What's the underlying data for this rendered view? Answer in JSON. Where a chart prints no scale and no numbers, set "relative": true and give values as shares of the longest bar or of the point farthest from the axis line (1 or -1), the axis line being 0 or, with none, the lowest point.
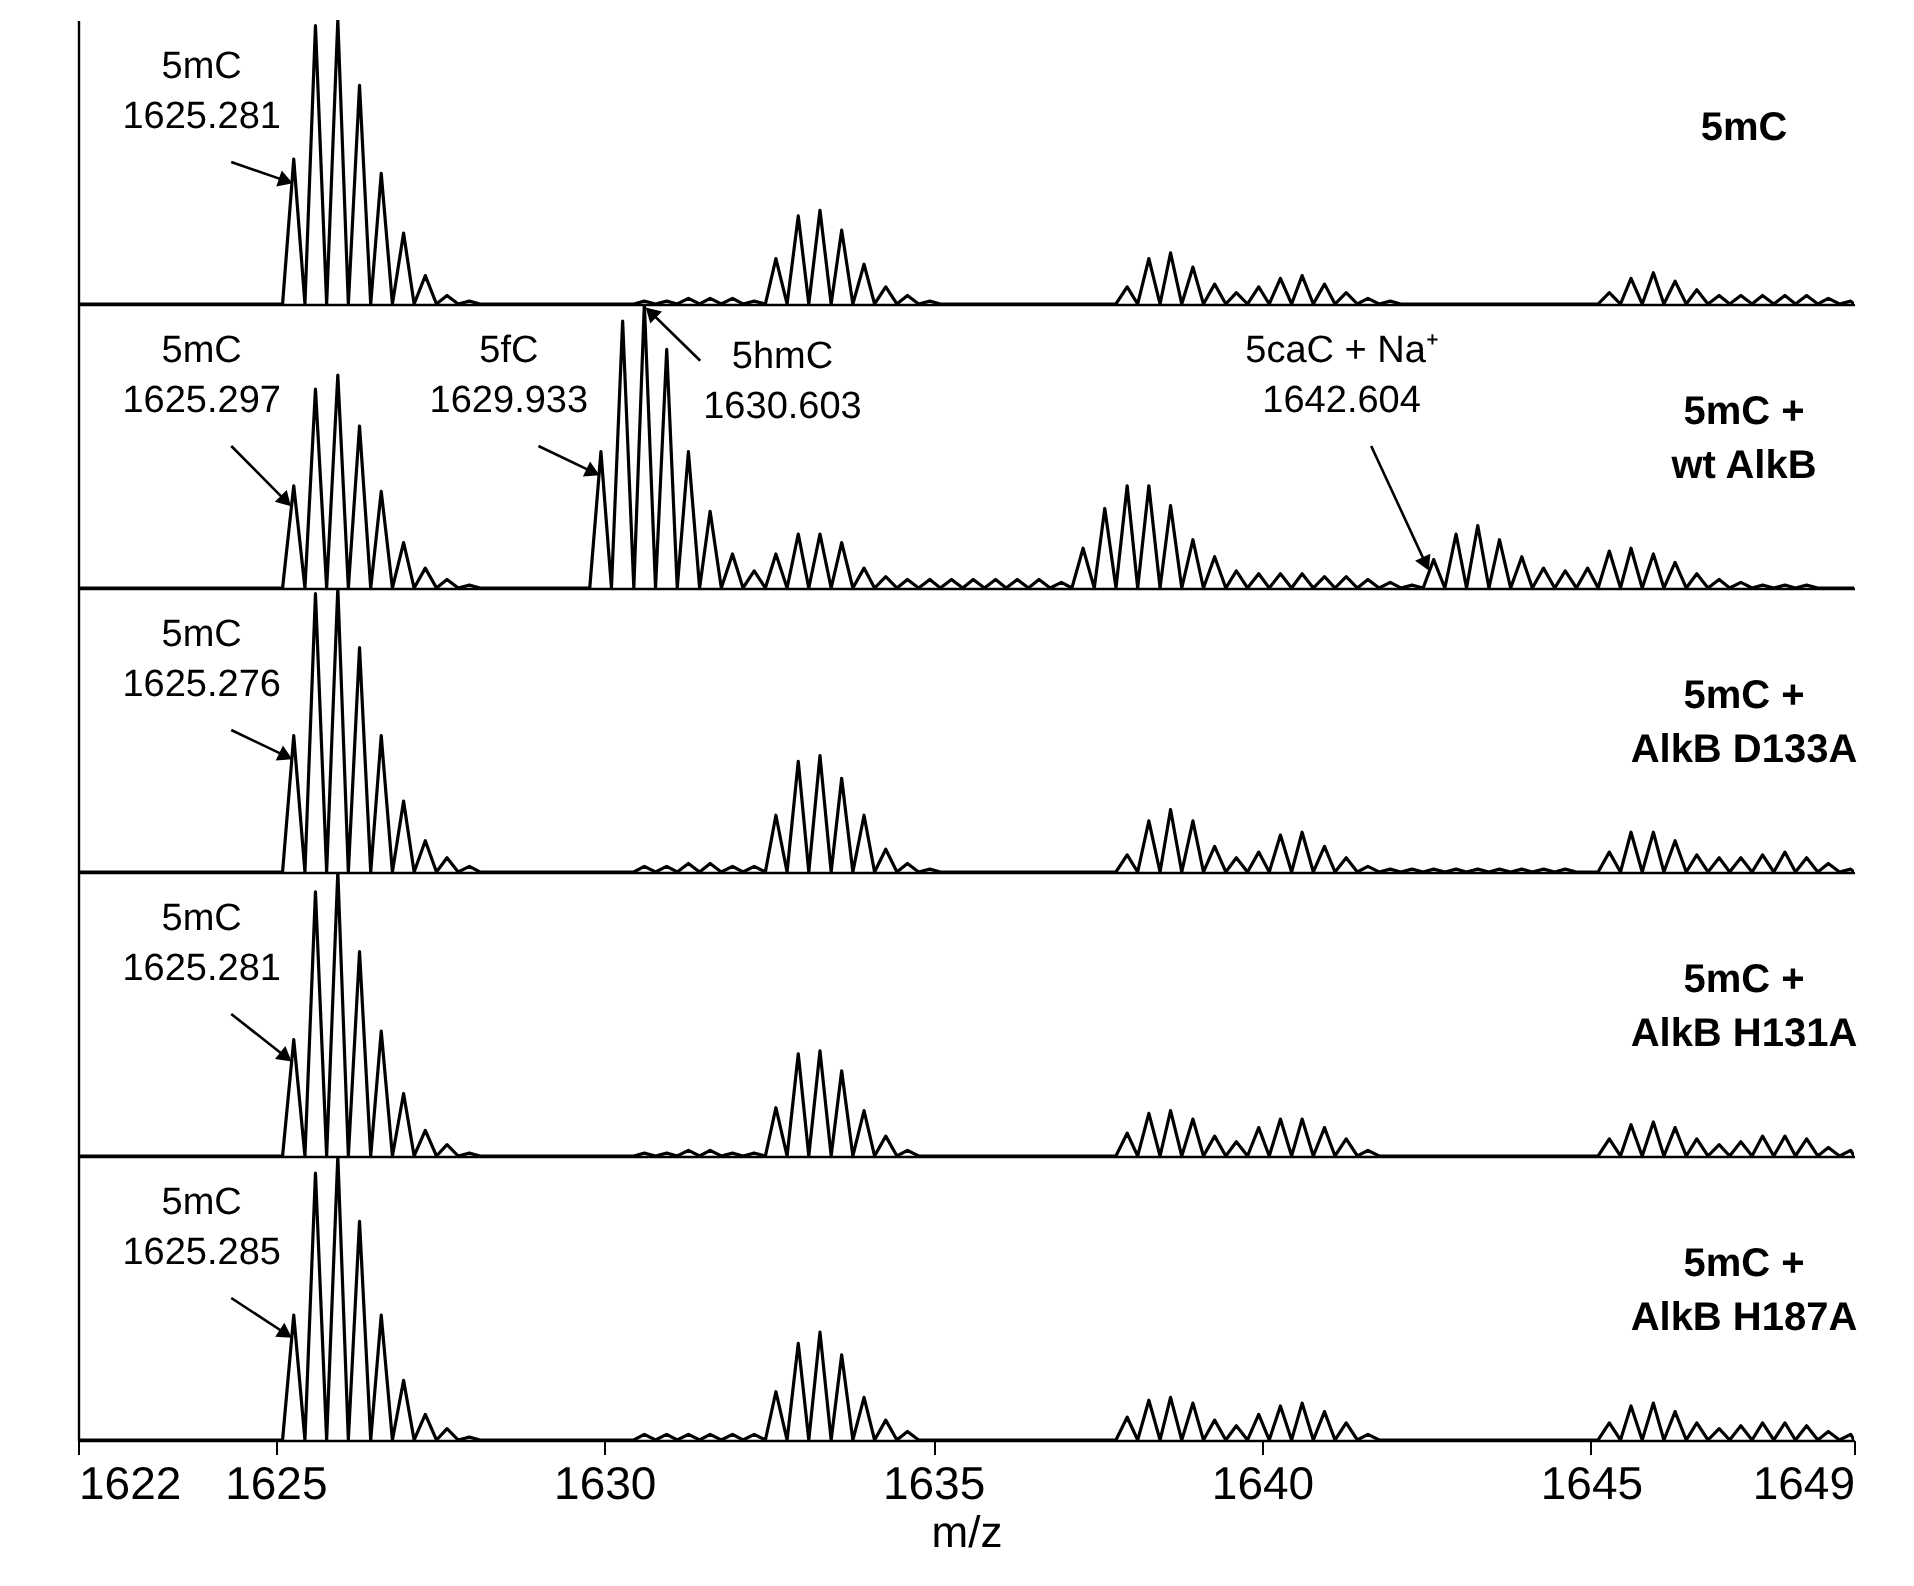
{
  "chart_data": [
    {
      "type": "line",
      "relative": true,
      "title": "5mC",
      "xlim": [
        1622,
        1649
      ],
      "tick_labels": false,
      "x": [
        1622,
        1625.11,
        1625.28,
        1625.45,
        1625.61,
        1625.78,
        1625.95,
        1626.11,
        1626.28,
        1626.45,
        1626.61,
        1626.78,
        1626.95,
        1627.11,
        1627.28,
        1627.45,
        1627.61,
        1627.78,
        1627.95,
        1628.11,
        1628.28,
        1628.45,
        1628.61,
        1628.78,
        1628.95,
        1629.11,
        1629.28,
        1629.45,
        1629.61,
        1629.78,
        1629.95,
        1630.11,
        1630.28,
        1630.45,
        1630.61,
        1630.78,
        1630.95,
        1631.11,
        1631.28,
        1631.45,
        1631.61,
        1631.78,
        1631.95,
        1632.11,
        1632.28,
        1632.45,
        1632.61,
        1632.78,
        1632.95,
        1633.11,
        1633.28,
        1633.45,
        1633.61,
        1633.78,
        1633.95,
        1634.11,
        1634.28,
        1634.45,
        1634.61,
        1634.78,
        1634.95,
        1635.11,
        1635.28,
        1635.45,
        1635.61,
        1635.78,
        1635.95,
        1636.11,
        1636.28,
        1636.45,
        1636.61,
        1636.78,
        1636.95,
        1637.11,
        1637.28,
        1637.45,
        1637.61,
        1637.78,
        1637.95,
        1638.11,
        1638.28,
        1638.45,
        1638.61,
        1638.78,
        1638.95,
        1639.11,
        1639.28,
        1639.45,
        1639.61,
        1639.78,
        1639.95,
        1640.11,
        1640.28,
        1640.45,
        1640.61,
        1640.78,
        1640.95,
        1641.11,
        1641.28,
        1641.45,
        1641.61,
        1641.78,
        1641.95,
        1642.11,
        1642.28,
        1642.45,
        1642.61,
        1642.78,
        1642.95,
        1643.11,
        1643.28,
        1643.45,
        1643.61,
        1643.78,
        1643.95,
        1644.11,
        1644.28,
        1644.45,
        1644.61,
        1644.78,
        1644.95,
        1645.11,
        1645.28,
        1645.45,
        1645.61,
        1645.78,
        1645.95,
        1646.11,
        1646.28,
        1646.45,
        1646.61,
        1646.78,
        1646.95,
        1647.11,
        1647.28,
        1647.45,
        1647.61,
        1647.78,
        1647.95,
        1648.11,
        1648.28,
        1648.45,
        1648.61,
        1648.78,
        1648.95,
        1649
      ],
      "series": [
        {
          "color": "#000000",
          "values": [
            0,
            0,
            0.51,
            0,
            0.98,
            0,
            1,
            0,
            0.77,
            0,
            0.46,
            0,
            0.25,
            0,
            0.1,
            0,
            0.03,
            0,
            0.01,
            0,
            0,
            0,
            0,
            0,
            0,
            0,
            0,
            0,
            0,
            0,
            0,
            0,
            0,
            0,
            0.01,
            0,
            0.01,
            0,
            0.02,
            0,
            0.02,
            0,
            0.02,
            0,
            0.01,
            0,
            0.16,
            0,
            0.31,
            0,
            0.33,
            0,
            0.26,
            0,
            0.14,
            0,
            0.06,
            0,
            0.03,
            0,
            0.01,
            0,
            0,
            0,
            0,
            0,
            0,
            0,
            0,
            0,
            0,
            0,
            0,
            0,
            0,
            0,
            0,
            0,
            0.06,
            0,
            0.16,
            0,
            0.18,
            0,
            0.13,
            0,
            0.07,
            0,
            0.04,
            0,
            0.06,
            0,
            0.09,
            0,
            0.1,
            0,
            0.07,
            0,
            0.04,
            0,
            0.02,
            0,
            0.01,
            0,
            0,
            0,
            0,
            0,
            0,
            0,
            0,
            0,
            0,
            0,
            0,
            0,
            0,
            0,
            0,
            0,
            0,
            0,
            0.04,
            0,
            0.09,
            0,
            0.11,
            0,
            0.08,
            0,
            0.05,
            0,
            0.03,
            0,
            0.03,
            0,
            0.03,
            0,
            0.03,
            0,
            0.03,
            0,
            0.02,
            0,
            0.01,
            0
          ]
        }
      ],
      "annotations": [
        {
          "text": "5mC\n1625.281",
          "x": 1625.28,
          "y": 0.51
        }
      ]
    },
    {
      "type": "line",
      "relative": true,
      "title": "5mC +\nwt AlkB",
      "xlim": [
        1622,
        1649
      ],
      "tick_labels": false,
      "x": [
        1622,
        1625.11,
        1625.28,
        1625.45,
        1625.61,
        1625.78,
        1625.95,
        1626.11,
        1626.28,
        1626.45,
        1626.61,
        1626.78,
        1626.95,
        1627.11,
        1627.28,
        1627.45,
        1627.61,
        1627.78,
        1627.95,
        1628.11,
        1628.28,
        1628.45,
        1628.61,
        1628.78,
        1628.95,
        1629.11,
        1629.28,
        1629.45,
        1629.61,
        1629.78,
        1629.95,
        1630.11,
        1630.28,
        1630.45,
        1630.61,
        1630.78,
        1630.95,
        1631.11,
        1631.28,
        1631.45,
        1631.61,
        1631.78,
        1631.95,
        1632.11,
        1632.28,
        1632.45,
        1632.61,
        1632.78,
        1632.95,
        1633.11,
        1633.28,
        1633.45,
        1633.61,
        1633.78,
        1633.95,
        1634.11,
        1634.28,
        1634.45,
        1634.61,
        1634.78,
        1634.95,
        1635.11,
        1635.28,
        1635.45,
        1635.61,
        1635.78,
        1635.95,
        1636.11,
        1636.28,
        1636.45,
        1636.61,
        1636.78,
        1636.95,
        1637.11,
        1637.28,
        1637.45,
        1637.61,
        1637.78,
        1637.95,
        1638.11,
        1638.28,
        1638.45,
        1638.61,
        1638.78,
        1638.95,
        1639.11,
        1639.28,
        1639.45,
        1639.61,
        1639.78,
        1639.95,
        1640.11,
        1640.28,
        1640.45,
        1640.61,
        1640.78,
        1640.95,
        1641.11,
        1641.28,
        1641.45,
        1641.61,
        1641.78,
        1641.95,
        1642.11,
        1642.28,
        1642.45,
        1642.61,
        1642.78,
        1642.95,
        1643.11,
        1643.28,
        1643.45,
        1643.61,
        1643.78,
        1643.95,
        1644.11,
        1644.28,
        1644.45,
        1644.61,
        1644.78,
        1644.95,
        1645.11,
        1645.28,
        1645.45,
        1645.61,
        1645.78,
        1645.95,
        1646.11,
        1646.28,
        1646.45,
        1646.61,
        1646.78,
        1646.95,
        1647.11,
        1647.28,
        1647.45,
        1647.61,
        1647.78,
        1647.95,
        1648.11,
        1648.28,
        1648.45,
        1648.61,
        1648.78,
        1648.95,
        1649
      ],
      "series": [
        {
          "color": "#000000",
          "values": [
            0,
            0,
            0.36,
            0,
            0.7,
            0,
            0.75,
            0,
            0.57,
            0,
            0.34,
            0,
            0.16,
            0,
            0.07,
            0,
            0.03,
            0,
            0.01,
            0,
            0,
            0,
            0,
            0,
            0,
            0,
            0,
            0,
            0,
            0,
            0.48,
            0,
            0.94,
            0,
            1,
            0,
            0.84,
            0,
            0.48,
            0,
            0.27,
            0,
            0.12,
            0,
            0.06,
            0,
            0.12,
            0,
            0.19,
            0,
            0.19,
            0,
            0.16,
            0,
            0.07,
            0,
            0.04,
            0,
            0.03,
            0,
            0.03,
            0,
            0.03,
            0,
            0.03,
            0,
            0.03,
            0,
            0.03,
            0,
            0.03,
            0,
            0.02,
            0,
            0.14,
            0,
            0.28,
            0,
            0.36,
            0,
            0.36,
            0,
            0.29,
            0,
            0.17,
            0,
            0.11,
            0,
            0.06,
            0,
            0.05,
            0,
            0.05,
            0,
            0.05,
            0,
            0.04,
            0,
            0.04,
            0,
            0.03,
            0,
            0.02,
            0,
            0.01,
            0,
            0.1,
            0,
            0.19,
            0,
            0.22,
            0,
            0.17,
            0,
            0.11,
            0,
            0.07,
            0,
            0.06,
            0,
            0.07,
            0,
            0.13,
            0,
            0.14,
            0,
            0.12,
            0,
            0.09,
            0,
            0.05,
            0,
            0.03,
            0,
            0.02,
            0,
            0.01,
            0,
            0.01,
            0,
            0.01,
            0,
            0,
            0,
            0,
            0
          ]
        }
      ],
      "annotations": [
        {
          "text": "5mC\n1625.297",
          "x": 1625.28,
          "y": 0.36
        },
        {
          "text": "5fC\n1629.933",
          "x": 1629.95,
          "y": 0.48
        },
        {
          "text": "5hmC\n1630.603",
          "x": 1630.61,
          "y": 1
        },
        {
          "text": "5caC + Na⁺\n1642.604",
          "x": 1642.61,
          "y": 0.1
        }
      ]
    },
    {
      "type": "line",
      "relative": true,
      "title": "5mC +\nAlkB D133A",
      "xlim": [
        1622,
        1649
      ],
      "tick_labels": false,
      "x": [
        1622,
        1625.11,
        1625.28,
        1625.45,
        1625.61,
        1625.78,
        1625.95,
        1626.11,
        1626.28,
        1626.45,
        1626.61,
        1626.78,
        1626.95,
        1627.11,
        1627.28,
        1627.45,
        1627.61,
        1627.78,
        1627.95,
        1628.11,
        1628.28,
        1628.45,
        1628.61,
        1628.78,
        1628.95,
        1629.11,
        1629.28,
        1629.45,
        1629.61,
        1629.78,
        1629.95,
        1630.11,
        1630.28,
        1630.45,
        1630.61,
        1630.78,
        1630.95,
        1631.11,
        1631.28,
        1631.45,
        1631.61,
        1631.78,
        1631.95,
        1632.11,
        1632.28,
        1632.45,
        1632.61,
        1632.78,
        1632.95,
        1633.11,
        1633.28,
        1633.45,
        1633.61,
        1633.78,
        1633.95,
        1634.11,
        1634.28,
        1634.45,
        1634.61,
        1634.78,
        1634.95,
        1635.11,
        1635.28,
        1635.45,
        1635.61,
        1635.78,
        1635.95,
        1636.11,
        1636.28,
        1636.45,
        1636.61,
        1636.78,
        1636.95,
        1637.11,
        1637.28,
        1637.45,
        1637.61,
        1637.78,
        1637.95,
        1638.11,
        1638.28,
        1638.45,
        1638.61,
        1638.78,
        1638.95,
        1639.11,
        1639.28,
        1639.45,
        1639.61,
        1639.78,
        1639.95,
        1640.11,
        1640.28,
        1640.45,
        1640.61,
        1640.78,
        1640.95,
        1641.11,
        1641.28,
        1641.45,
        1641.61,
        1641.78,
        1641.95,
        1642.11,
        1642.28,
        1642.45,
        1642.61,
        1642.78,
        1642.95,
        1643.11,
        1643.28,
        1643.45,
        1643.61,
        1643.78,
        1643.95,
        1644.11,
        1644.28,
        1644.45,
        1644.61,
        1644.78,
        1644.95,
        1645.11,
        1645.28,
        1645.45,
        1645.61,
        1645.78,
        1645.95,
        1646.11,
        1646.28,
        1646.45,
        1646.61,
        1646.78,
        1646.95,
        1647.11,
        1647.28,
        1647.45,
        1647.61,
        1647.78,
        1647.95,
        1648.11,
        1648.28,
        1648.45,
        1648.61,
        1648.78,
        1648.95,
        1649
      ],
      "series": [
        {
          "color": "#000000",
          "values": [
            0,
            0,
            0.48,
            0,
            0.98,
            0,
            1,
            0,
            0.79,
            0,
            0.48,
            0,
            0.25,
            0,
            0.11,
            0,
            0.05,
            0,
            0.02,
            0,
            0,
            0,
            0,
            0,
            0,
            0,
            0,
            0,
            0,
            0,
            0,
            0,
            0,
            0,
            0.02,
            0,
            0.02,
            0,
            0.03,
            0,
            0.03,
            0,
            0.02,
            0,
            0.02,
            0,
            0.2,
            0,
            0.39,
            0,
            0.41,
            0,
            0.33,
            0,
            0.2,
            0,
            0.08,
            0,
            0.03,
            0,
            0.01,
            0,
            0,
            0,
            0,
            0,
            0,
            0,
            0,
            0,
            0,
            0,
            0,
            0,
            0,
            0,
            0,
            0,
            0.06,
            0,
            0.18,
            0,
            0.22,
            0,
            0.18,
            0,
            0.09,
            0,
            0.05,
            0,
            0.07,
            0,
            0.13,
            0,
            0.14,
            0,
            0.09,
            0,
            0.05,
            0,
            0.02,
            0,
            0.01,
            0,
            0.01,
            0,
            0.01,
            0,
            0.01,
            0,
            0.01,
            0,
            0.01,
            0,
            0.01,
            0,
            0.01,
            0,
            0.01,
            0,
            0,
            0,
            0.07,
            0,
            0.14,
            0,
            0.14,
            0,
            0.11,
            0,
            0.06,
            0,
            0.05,
            0,
            0.05,
            0,
            0.06,
            0,
            0.07,
            0,
            0.05,
            0,
            0.03,
            0,
            0.01,
            0
          ]
        }
      ],
      "annotations": [
        {
          "text": "5mC\n1625.276",
          "x": 1625.28,
          "y": 0.48
        }
      ]
    },
    {
      "type": "line",
      "relative": true,
      "title": "5mC +\nAlkB H131A",
      "xlim": [
        1622,
        1649
      ],
      "tick_labels": false,
      "x": [
        1622,
        1625.11,
        1625.28,
        1625.45,
        1625.61,
        1625.78,
        1625.95,
        1626.11,
        1626.28,
        1626.45,
        1626.61,
        1626.78,
        1626.95,
        1627.11,
        1627.28,
        1627.45,
        1627.61,
        1627.78,
        1627.95,
        1628.11,
        1628.28,
        1628.45,
        1628.61,
        1628.78,
        1628.95,
        1629.11,
        1629.28,
        1629.45,
        1629.61,
        1629.78,
        1629.95,
        1630.11,
        1630.28,
        1630.45,
        1630.61,
        1630.78,
        1630.95,
        1631.11,
        1631.28,
        1631.45,
        1631.61,
        1631.78,
        1631.95,
        1632.11,
        1632.28,
        1632.45,
        1632.61,
        1632.78,
        1632.95,
        1633.11,
        1633.28,
        1633.45,
        1633.61,
        1633.78,
        1633.95,
        1634.11,
        1634.28,
        1634.45,
        1634.61,
        1634.78,
        1634.95,
        1635.11,
        1635.28,
        1635.45,
        1635.61,
        1635.78,
        1635.95,
        1636.11,
        1636.28,
        1636.45,
        1636.61,
        1636.78,
        1636.95,
        1637.11,
        1637.28,
        1637.45,
        1637.61,
        1637.78,
        1637.95,
        1638.11,
        1638.28,
        1638.45,
        1638.61,
        1638.78,
        1638.95,
        1639.11,
        1639.28,
        1639.45,
        1639.61,
        1639.78,
        1639.95,
        1640.11,
        1640.28,
        1640.45,
        1640.61,
        1640.78,
        1640.95,
        1641.11,
        1641.28,
        1641.45,
        1641.61,
        1641.78,
        1641.95,
        1642.11,
        1642.28,
        1642.45,
        1642.61,
        1642.78,
        1642.95,
        1643.11,
        1643.28,
        1643.45,
        1643.61,
        1643.78,
        1643.95,
        1644.11,
        1644.28,
        1644.45,
        1644.61,
        1644.78,
        1644.95,
        1645.11,
        1645.28,
        1645.45,
        1645.61,
        1645.78,
        1645.95,
        1646.11,
        1646.28,
        1646.45,
        1646.61,
        1646.78,
        1646.95,
        1647.11,
        1647.28,
        1647.45,
        1647.61,
        1647.78,
        1647.95,
        1648.11,
        1648.28,
        1648.45,
        1648.61,
        1648.78,
        1648.95,
        1649
      ],
      "series": [
        {
          "color": "#000000",
          "values": [
            0,
            0,
            0.41,
            0,
            0.93,
            0,
            1,
            0,
            0.72,
            0,
            0.44,
            0,
            0.22,
            0,
            0.09,
            0,
            0.04,
            0,
            0.01,
            0,
            0,
            0,
            0,
            0,
            0,
            0,
            0,
            0,
            0,
            0,
            0,
            0,
            0,
            0,
            0.01,
            0,
            0.01,
            0,
            0.02,
            0,
            0.02,
            0,
            0.01,
            0,
            0.01,
            0,
            0.17,
            0,
            0.36,
            0,
            0.37,
            0,
            0.3,
            0,
            0.16,
            0,
            0.07,
            0,
            0.02,
            0,
            0,
            0,
            0,
            0,
            0,
            0,
            0,
            0,
            0,
            0,
            0,
            0,
            0,
            0,
            0,
            0,
            0,
            0,
            0.08,
            0,
            0.15,
            0,
            0.16,
            0,
            0.13,
            0,
            0.07,
            0,
            0.05,
            0,
            0.1,
            0,
            0.13,
            0,
            0.13,
            0,
            0.1,
            0,
            0.06,
            0,
            0.02,
            0,
            0,
            0,
            0,
            0,
            0,
            0,
            0,
            0,
            0,
            0,
            0,
            0,
            0,
            0,
            0,
            0,
            0,
            0,
            0,
            0,
            0.06,
            0,
            0.11,
            0,
            0.12,
            0,
            0.1,
            0,
            0.06,
            0,
            0.04,
            0,
            0.05,
            0,
            0.07,
            0,
            0.07,
            0,
            0.06,
            0,
            0.03,
            0,
            0.02,
            0
          ]
        }
      ],
      "annotations": [
        {
          "text": "5mC\n1625.281",
          "x": 1625.28,
          "y": 0.41
        }
      ]
    },
    {
      "type": "line",
      "relative": true,
      "title": "5mC +\nAlkB H187A",
      "xlim": [
        1622,
        1649
      ],
      "xticks": [
        1622,
        1625,
        1630,
        1635,
        1640,
        1645,
        1649
      ],
      "xlabel": "m/z",
      "tick_labels": "x",
      "x": [
        1622,
        1625.11,
        1625.28,
        1625.45,
        1625.61,
        1625.78,
        1625.95,
        1626.11,
        1626.28,
        1626.45,
        1626.61,
        1626.78,
        1626.95,
        1627.11,
        1627.28,
        1627.45,
        1627.61,
        1627.78,
        1627.95,
        1628.11,
        1628.28,
        1628.45,
        1628.61,
        1628.78,
        1628.95,
        1629.11,
        1629.28,
        1629.45,
        1629.61,
        1629.78,
        1629.95,
        1630.11,
        1630.28,
        1630.45,
        1630.61,
        1630.78,
        1630.95,
        1631.11,
        1631.28,
        1631.45,
        1631.61,
        1631.78,
        1631.95,
        1632.11,
        1632.28,
        1632.45,
        1632.61,
        1632.78,
        1632.95,
        1633.11,
        1633.28,
        1633.45,
        1633.61,
        1633.78,
        1633.95,
        1634.11,
        1634.28,
        1634.45,
        1634.61,
        1634.78,
        1634.95,
        1635.11,
        1635.28,
        1635.45,
        1635.61,
        1635.78,
        1635.95,
        1636.11,
        1636.28,
        1636.45,
        1636.61,
        1636.78,
        1636.95,
        1637.11,
        1637.28,
        1637.45,
        1637.61,
        1637.78,
        1637.95,
        1638.11,
        1638.28,
        1638.45,
        1638.61,
        1638.78,
        1638.95,
        1639.11,
        1639.28,
        1639.45,
        1639.61,
        1639.78,
        1639.95,
        1640.11,
        1640.28,
        1640.45,
        1640.61,
        1640.78,
        1640.95,
        1641.11,
        1641.28,
        1641.45,
        1641.61,
        1641.78,
        1641.95,
        1642.11,
        1642.28,
        1642.45,
        1642.61,
        1642.78,
        1642.95,
        1643.11,
        1643.28,
        1643.45,
        1643.61,
        1643.78,
        1643.95,
        1644.11,
        1644.28,
        1644.45,
        1644.61,
        1644.78,
        1644.95,
        1645.11,
        1645.28,
        1645.45,
        1645.61,
        1645.78,
        1645.95,
        1646.11,
        1646.28,
        1646.45,
        1646.61,
        1646.78,
        1646.95,
        1647.11,
        1647.28,
        1647.45,
        1647.61,
        1647.78,
        1647.95,
        1648.11,
        1648.28,
        1648.45,
        1648.61,
        1648.78,
        1648.95,
        1649
      ],
      "series": [
        {
          "color": "#000000",
          "values": [
            0,
            0,
            0.44,
            0,
            0.94,
            0,
            1,
            0,
            0.77,
            0,
            0.44,
            0,
            0.21,
            0,
            0.09,
            0,
            0.04,
            0,
            0.01,
            0,
            0,
            0,
            0,
            0,
            0,
            0,
            0,
            0,
            0,
            0,
            0,
            0,
            0,
            0,
            0.02,
            0,
            0.02,
            0,
            0.02,
            0,
            0.02,
            0,
            0.02,
            0,
            0.02,
            0,
            0.17,
            0,
            0.34,
            0,
            0.38,
            0,
            0.3,
            0,
            0.15,
            0,
            0.07,
            0,
            0.03,
            0,
            0,
            0,
            0,
            0,
            0,
            0,
            0,
            0,
            0,
            0,
            0,
            0,
            0,
            0,
            0,
            0,
            0,
            0,
            0.08,
            0,
            0.14,
            0,
            0.15,
            0,
            0.13,
            0,
            0.07,
            0,
            0.05,
            0,
            0.09,
            0,
            0.12,
            0,
            0.13,
            0,
            0.1,
            0,
            0.06,
            0,
            0.02,
            0,
            0,
            0,
            0,
            0,
            0,
            0,
            0,
            0,
            0,
            0,
            0,
            0,
            0,
            0,
            0,
            0,
            0,
            0,
            0,
            0,
            0.06,
            0,
            0.12,
            0,
            0.13,
            0,
            0.1,
            0,
            0.06,
            0,
            0.04,
            0,
            0.05,
            0,
            0.06,
            0,
            0.06,
            0,
            0.05,
            0,
            0.03,
            0,
            0.02,
            0
          ]
        }
      ],
      "annotations": [
        {
          "text": "5mC\n1625.285",
          "x": 1625.28,
          "y": 0.44
        }
      ]
    }
  ]
}
